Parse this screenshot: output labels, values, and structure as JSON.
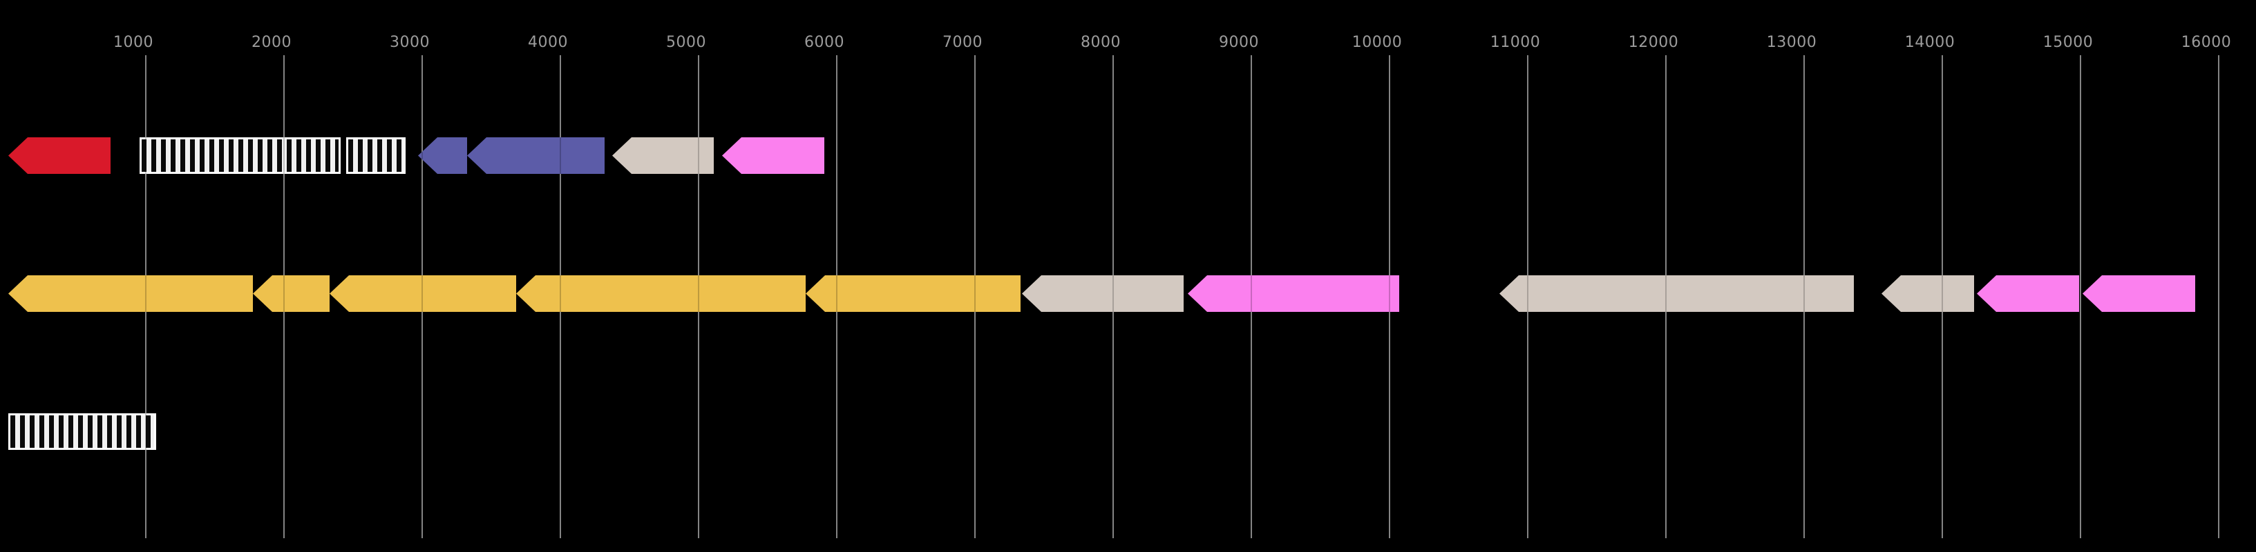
{
  "figure": {
    "background": "#000000",
    "description": "Dark-themed genome annotation map: three horizontal tracks of leftward-pointing gene arrows and black/white hatched feature boxes over a 1000-16000 bp ruler with vertical gridlines"
  },
  "chart_data": {
    "type": "genome-map",
    "title": "",
    "orientation": "horizontal",
    "legend": "none",
    "x_axis": {
      "tick_values": [
        1000,
        2000,
        3000,
        4000,
        5000,
        6000,
        7000,
        8000,
        9000,
        10000,
        11000,
        12000,
        13000,
        14000,
        15000,
        16000
      ],
      "tick_labels": [
        "1000",
        "2000",
        "3000",
        "4000",
        "5000",
        "6000",
        "7000",
        "8000",
        "9000",
        "10000",
        "11000",
        "12000",
        "13000",
        "14000",
        "15000",
        "16000"
      ],
      "range": [
        -55,
        16270
      ],
      "grid": true,
      "tick_side": "top",
      "gridline_color": "#8f8f8f",
      "tick_label_color": "#9c9c9c"
    },
    "palette": {
      "red": "#d9192a",
      "blue": "#5c5ca8",
      "tan": "#d3c9c1",
      "pink": "#fb80ee",
      "yellow": "#eec14d",
      "stripe_light": "#f1f1f1",
      "stripe_dark": "#0a0a0a",
      "stripe_border": "#ffffff"
    },
    "tracks": [
      {
        "name": "track-1",
        "features": [
          {
            "start": 5,
            "end": 745,
            "shape": "arrow-left",
            "style": "solid",
            "color_key": "red"
          },
          {
            "start": 955,
            "end": 2410,
            "shape": "box",
            "style": "striped",
            "color_key": "stripe_light"
          },
          {
            "start": 2450,
            "end": 2880,
            "shape": "box",
            "style": "striped",
            "color_key": "stripe_light"
          },
          {
            "start": 2970,
            "end": 3325,
            "shape": "arrow-left",
            "style": "solid",
            "color_key": "blue"
          },
          {
            "start": 3325,
            "end": 4320,
            "shape": "arrow-left",
            "style": "solid",
            "color_key": "blue"
          },
          {
            "start": 4375,
            "end": 5110,
            "shape": "arrow-left",
            "style": "solid",
            "color_key": "tan"
          },
          {
            "start": 5170,
            "end": 5910,
            "shape": "arrow-left",
            "style": "solid",
            "color_key": "pink"
          }
        ]
      },
      {
        "name": "track-2",
        "features": [
          {
            "start": 5,
            "end": 1775,
            "shape": "arrow-left",
            "style": "solid",
            "color_key": "yellow"
          },
          {
            "start": 1775,
            "end": 2330,
            "shape": "arrow-left",
            "style": "solid",
            "color_key": "yellow"
          },
          {
            "start": 2330,
            "end": 3680,
            "shape": "arrow-left",
            "style": "solid",
            "color_key": "yellow"
          },
          {
            "start": 3680,
            "end": 5775,
            "shape": "arrow-left",
            "style": "solid",
            "color_key": "yellow"
          },
          {
            "start": 5775,
            "end": 7330,
            "shape": "arrow-left",
            "style": "solid",
            "color_key": "yellow"
          },
          {
            "start": 7340,
            "end": 8510,
            "shape": "arrow-left",
            "style": "solid",
            "color_key": "tan"
          },
          {
            "start": 8540,
            "end": 10070,
            "shape": "arrow-left",
            "style": "solid",
            "color_key": "pink"
          },
          {
            "start": 10795,
            "end": 13360,
            "shape": "arrow-left",
            "style": "solid",
            "color_key": "tan"
          },
          {
            "start": 13560,
            "end": 14230,
            "shape": "arrow-left",
            "style": "solid",
            "color_key": "tan"
          },
          {
            "start": 14250,
            "end": 14990,
            "shape": "arrow-left",
            "style": "solid",
            "color_key": "pink"
          },
          {
            "start": 15015,
            "end": 15830,
            "shape": "arrow-left",
            "style": "solid",
            "color_key": "pink"
          }
        ]
      },
      {
        "name": "track-3",
        "features": [
          {
            "start": 5,
            "end": 1075,
            "shape": "box",
            "style": "striped",
            "color_key": "stripe_light"
          }
        ]
      }
    ]
  }
}
